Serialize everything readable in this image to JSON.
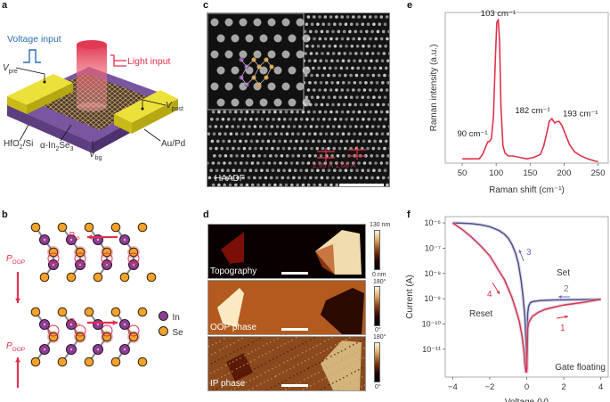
{
  "panels": {
    "a": {
      "label": "a",
      "voltage_input": "Voltage input",
      "light_input": "Light input",
      "v_pre": "V",
      "v_pre_sub": "pre",
      "v_post": "V",
      "v_post_sub": "post",
      "v_bg": "V",
      "v_bg_sub": "bg",
      "hfo2": "HfO",
      "hfo2_sub": "2",
      "hfo2_rest": "/Si",
      "in2se3_prefix": "α-In",
      "in2se3_sub1": "2",
      "in2se3_mid": "Se",
      "in2se3_sub2": "3",
      "aupd": "Au/Pd",
      "colors": {
        "voltage": "#2e6fb5",
        "light": "#e0314b",
        "electrode": "#e8d21c",
        "substrate": "#6b4a8e"
      }
    },
    "b": {
      "label": "b",
      "p_ip": "P",
      "p_ip_sub": "IP",
      "p_oop": "P",
      "p_oop_sub": "OOP",
      "legend": [
        {
          "label": "In",
          "color": "#8b3f8f"
        },
        {
          "label": "Se",
          "color": "#f0a22a"
        }
      ],
      "arrow_color": "#e0314b"
    },
    "c": {
      "label": "c",
      "image_label": "HAADF",
      "distances": "2.95 Å  1.68 Å"
    },
    "d": {
      "label": "d",
      "images": [
        {
          "name": "Topography",
          "scale_top": "130 nm",
          "scale_bottom": "0 nm"
        },
        {
          "name": "OOP phase",
          "scale_top": "180°",
          "scale_bottom": "0°"
        },
        {
          "name": "IP phase",
          "scale_top": "180°",
          "scale_bottom": "0°"
        }
      ]
    },
    "e": {
      "label": "e"
    },
    "f": {
      "label": "f"
    }
  },
  "chart_data": [
    {
      "id": "e",
      "type": "line",
      "title": "",
      "xlabel": "Raman shift (cm⁻¹)",
      "ylabel": "Raman intensity (a.u.)",
      "xlim": [
        25,
        265
      ],
      "ylim": [
        0,
        1.05
      ],
      "xticks": [
        50,
        100,
        150,
        200,
        250
      ],
      "grid": false,
      "series": [
        {
          "name": "Raman spectrum",
          "color": "#e0314b",
          "x": [
            50,
            60,
            70,
            75,
            80,
            85,
            88,
            90,
            93,
            96,
            99,
            101,
            103,
            105,
            107,
            110,
            113,
            118,
            125,
            135,
            145,
            155,
            165,
            170,
            175,
            178,
            182,
            186,
            190,
            193,
            197,
            202,
            208,
            215,
            225,
            235,
            245,
            250
          ],
          "y": [
            0.03,
            0.03,
            0.03,
            0.03,
            0.06,
            0.12,
            0.15,
            0.15,
            0.17,
            0.32,
            0.75,
            0.98,
            1.0,
            0.85,
            0.4,
            0.12,
            0.07,
            0.05,
            0.05,
            0.04,
            0.03,
            0.04,
            0.06,
            0.12,
            0.22,
            0.29,
            0.31,
            0.28,
            0.29,
            0.29,
            0.26,
            0.2,
            0.13,
            0.08,
            0.05,
            0.03,
            0.015,
            0.01
          ]
        }
      ],
      "annotations": [
        {
          "text": "103 cm⁻¹",
          "x": 103,
          "y": 1.0
        },
        {
          "text": "90 cm⁻¹",
          "x": 90,
          "y": 0.15
        },
        {
          "text": "182 cm⁻¹",
          "x": 182,
          "y": 0.31
        },
        {
          "text": "193 cm⁻¹",
          "x": 193,
          "y": 0.29
        }
      ]
    },
    {
      "id": "f",
      "type": "line",
      "title": "",
      "xlabel": "Voltage (V)",
      "ylabel": "Current (A)",
      "xlim": [
        -4.4,
        4.4
      ],
      "ylim_log10": [
        -12.1,
        -5.75
      ],
      "yscale": "log",
      "xticks": [
        -4,
        -2,
        0,
        2,
        4
      ],
      "yticks": [
        "10⁻⁶",
        "10⁻⁷",
        "10⁻⁸",
        "10⁻⁹",
        "10⁻¹⁰",
        "10⁻¹¹"
      ],
      "ytick_log10": [
        -6,
        -7,
        -8,
        -9,
        -10,
        -11
      ],
      "grid": false,
      "series": [
        {
          "name": "Set",
          "color": "#4b4f86",
          "x": [
            -4,
            -3.5,
            -3,
            -2.5,
            -2,
            -1.5,
            -1.2,
            -1,
            -0.8,
            -0.6,
            -0.45,
            -0.3,
            -0.2,
            -0.1,
            -0.05,
            0,
            0.05,
            0.1,
            0.2,
            0.4,
            0.8,
            1.5,
            2.5,
            3.5,
            4
          ],
          "log10_y": [
            -6.0,
            -6.01,
            -6.03,
            -6.07,
            -6.15,
            -6.3,
            -6.45,
            -6.6,
            -6.85,
            -7.2,
            -7.6,
            -8.3,
            -8.9,
            -9.7,
            -10.6,
            -11.8,
            -9.6,
            -9.3,
            -9.15,
            -9.1,
            -9.07,
            -9.05,
            -9.04,
            -9.03,
            -9.02
          ]
        },
        {
          "name": "Reset",
          "color": "#e0314b",
          "x": [
            -4,
            -3.5,
            -3,
            -2.5,
            -2,
            -1.7,
            -1.5,
            -1.2,
            -1,
            -0.8,
            -0.6,
            -0.4,
            -0.25,
            -0.15,
            -0.1,
            -0.05,
            0,
            0.05,
            0.1,
            0.3,
            0.6,
            1,
            1.5,
            2,
            3,
            4
          ],
          "log10_y": [
            -6.0,
            -6.25,
            -6.55,
            -6.9,
            -7.3,
            -7.65,
            -7.9,
            -8.25,
            -8.6,
            -8.95,
            -9.4,
            -9.9,
            -10.5,
            -11.1,
            -11.6,
            -11.9,
            -11.9,
            -10.2,
            -9.95,
            -9.7,
            -9.55,
            -9.42,
            -9.33,
            -9.25,
            -9.15,
            -9.02
          ]
        }
      ],
      "annotations": [
        {
          "text": "1",
          "color": "#e0314b"
        },
        {
          "text": "2",
          "color": "#6b6fb5"
        },
        {
          "text": "3",
          "color": "#6b6fb5"
        },
        {
          "text": "4",
          "color": "#e0314b"
        },
        {
          "text": "Set",
          "color": "#333"
        },
        {
          "text": "Reset",
          "color": "#333"
        },
        {
          "text": "Gate floating",
          "color": "#333"
        }
      ]
    }
  ]
}
